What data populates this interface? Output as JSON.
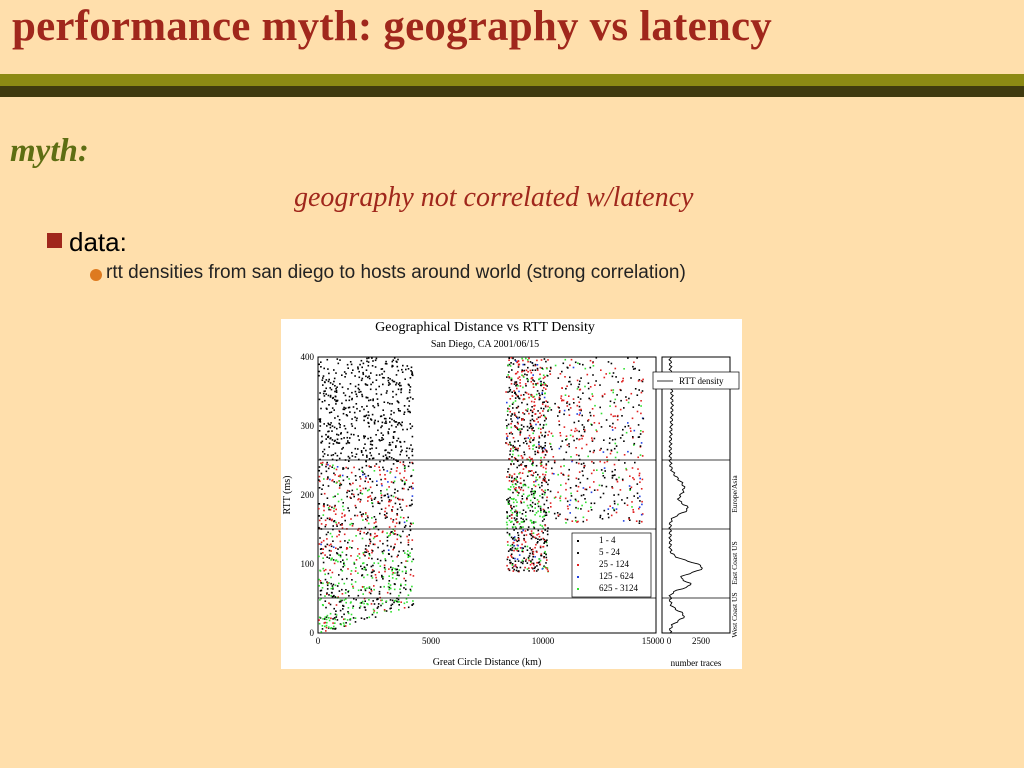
{
  "slide": {
    "title": "performance myth: geography vs latency",
    "myth_label": "myth:",
    "myth_statement": "geography not correlated w/latency",
    "bullet": "data:",
    "sub_bullet": "rtt densities from san diego to hosts around world (strong correlation)"
  },
  "colors": {
    "background": "#FFDFAC",
    "title": "#A0271C",
    "olive_bar": "#8C8A14",
    "dark_bar": "#3F3A0F",
    "myth_label": "#5E6E13",
    "bullet_square": "#A0271C",
    "sub_bullet_dot": "#DE7A1F"
  },
  "figure": {
    "title": "Geographical Distance vs RTT Density",
    "subtitle": "San Diego, CA 2001/06/15",
    "xlabel": "Great Circle Distance (km)",
    "ylabel": "RTT (ms)",
    "x_ticks": [
      "0",
      "5000",
      "10000",
      "15000"
    ],
    "y_ticks": [
      "0",
      "100",
      "200",
      "300",
      "400"
    ],
    "legend_title": "",
    "legend": [
      "1 - 4",
      "5 - 24",
      "25 - 124",
      "125 - 624",
      "625 - 3124"
    ],
    "legend_colors": [
      "#000000",
      "#111111",
      "#E02020",
      "#2040E0",
      "#30E030"
    ],
    "side_legend": "RTT density",
    "side_x_ticks": [
      "0",
      "2500"
    ],
    "side_xlabel": "number traces",
    "region_labels": [
      "West Coast US",
      "East Coast US",
      "Europe/Asia"
    ]
  },
  "chart_data": {
    "type": "scatter",
    "title": "Geographical Distance vs RTT Density",
    "subtitle": "San Diego, CA 2001/06/15",
    "xlabel": "Great Circle Distance (km)",
    "ylabel": "RTT (ms)",
    "xlim": [
      0,
      15000
    ],
    "ylim": [
      0,
      400
    ],
    "series": [
      {
        "name": "1 - 4",
        "color": "#000000"
      },
      {
        "name": "5 - 24",
        "color": "#111111"
      },
      {
        "name": "25 - 124",
        "color": "#E02020"
      },
      {
        "name": "125 - 624",
        "color": "#2040E0"
      },
      {
        "name": "625 - 3124",
        "color": "#30E030"
      }
    ],
    "horizontal_lines_ms": [
      50,
      150,
      250
    ],
    "clusters": [
      {
        "x_range": [
          0,
          4200
        ],
        "rtt_range": [
          0,
          400
        ]
      },
      {
        "x_range": [
          8300,
          10200
        ],
        "rtt_range": [
          90,
          400
        ]
      },
      {
        "x_range": [
          10200,
          14400
        ],
        "rtt_range": [
          160,
          400
        ]
      }
    ],
    "side_panel": {
      "xlabel": "number traces",
      "xlim": [
        0,
        4000
      ],
      "x_ticks": [
        0,
        2500
      ],
      "legend": "RTT density",
      "regions": [
        {
          "label": "West Coast US",
          "rtt_range": [
            0,
            50
          ]
        },
        {
          "label": "East Coast US",
          "rtt_range": [
            50,
            150
          ]
        },
        {
          "label": "Europe/Asia",
          "rtt_range": [
            150,
            250
          ]
        }
      ]
    }
  }
}
